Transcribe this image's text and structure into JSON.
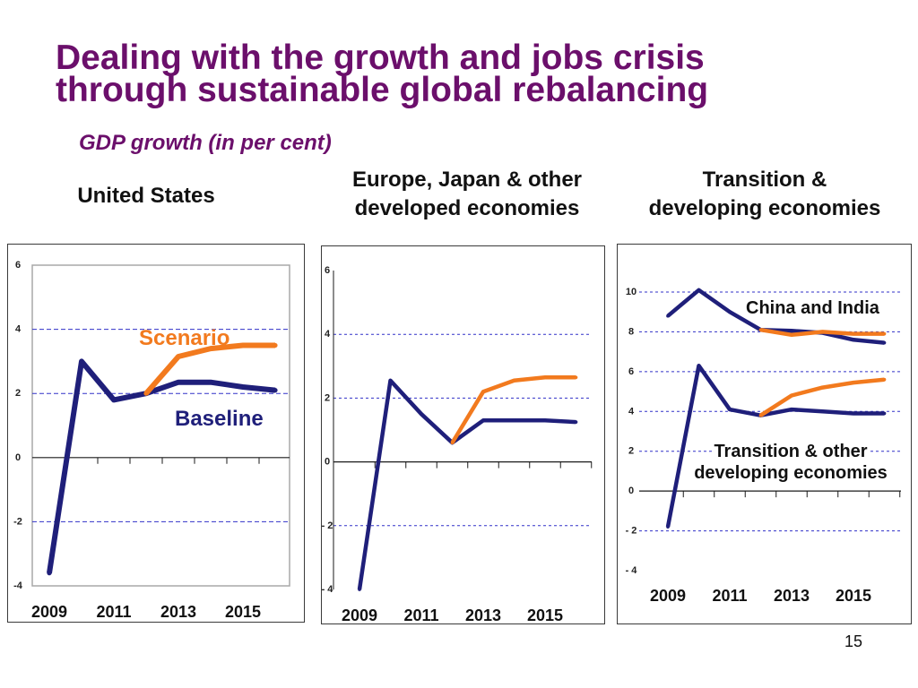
{
  "slide": {
    "title": {
      "line1": "Dealing with the growth and jobs crisis",
      "line2": "through sustainable global rebalancing"
    },
    "subtitle": "GDP growth (in per cent)",
    "page_number": "15"
  },
  "colors": {
    "title": "#6b0f6b",
    "baseline": "#1f1f7a",
    "scenario": "#f27a1e",
    "grid": "#3030c8",
    "axis": "#1a1a1a",
    "frame": "#a8a8a8",
    "text": "#111111"
  },
  "chart_data": [
    {
      "type": "line",
      "title_lines": [
        "United States"
      ],
      "x": [
        2009,
        2010,
        2011,
        2012,
        2013,
        2014,
        2015,
        2016
      ],
      "xticks": [
        2009,
        2011,
        2013,
        2015
      ],
      "ylim": [
        -4,
        6
      ],
      "yticks": [
        6,
        4,
        2,
        0,
        -2,
        -4
      ],
      "ytick_labels": [
        "6",
        "4",
        "2",
        "0",
        "-2",
        "-4"
      ],
      "grid_lines": [
        4,
        2,
        -2
      ],
      "series": {
        "baseline": [
          -3.6,
          3.0,
          1.8,
          2.0,
          2.35,
          2.35,
          2.2,
          2.1
        ],
        "scenario": [
          null,
          null,
          null,
          2.0,
          3.15,
          3.4,
          3.5,
          3.5
        ]
      },
      "annotations": {
        "scenario": "Scenario",
        "baseline": "Baseline"
      }
    },
    {
      "type": "line",
      "title_lines": [
        "Europe, Japan & other",
        "developed economies"
      ],
      "x": [
        2009,
        2010,
        2011,
        2012,
        2013,
        2014,
        2015,
        2016
      ],
      "xticks": [
        2009,
        2011,
        2013,
        2015
      ],
      "ylim": [
        -4,
        6
      ],
      "yticks": [
        6,
        4,
        2,
        0,
        -2,
        -4
      ],
      "ytick_labels": [
        "6",
        "4",
        "2",
        "0",
        "- 2",
        "- 4"
      ],
      "grid_lines": [
        4,
        2,
        -2
      ],
      "series": {
        "baseline": [
          -4.0,
          2.55,
          1.5,
          0.6,
          1.3,
          1.3,
          1.3,
          1.25
        ],
        "scenario": [
          null,
          null,
          null,
          0.6,
          2.2,
          2.55,
          2.65,
          2.65
        ]
      }
    },
    {
      "type": "line",
      "title_lines": [
        "Transition &",
        "developing economies"
      ],
      "x": [
        2009,
        2010,
        2011,
        2012,
        2013,
        2014,
        2015,
        2016
      ],
      "xticks": [
        2009,
        2011,
        2013,
        2015
      ],
      "ylim": [
        -4,
        10
      ],
      "yticks": [
        10,
        8,
        6,
        4,
        2,
        0,
        -2,
        -4
      ],
      "ytick_labels": [
        "10",
        "8",
        "6",
        "4",
        "2",
        "0",
        "- 2",
        "- 4"
      ],
      "grid_lines": [
        10,
        8,
        6,
        4,
        2,
        -2
      ],
      "groups": [
        {
          "label_lines": [
            "China and India"
          ],
          "series": {
            "baseline": [
              8.8,
              10.1,
              9.0,
              8.1,
              8.05,
              7.95,
              7.6,
              7.45
            ],
            "scenario": [
              null,
              null,
              null,
              8.1,
              7.85,
              8.0,
              7.9,
              7.9
            ]
          }
        },
        {
          "label_lines": [
            "Transition & other",
            "developing economies"
          ],
          "series": {
            "baseline": [
              -1.8,
              6.3,
              4.1,
              3.8,
              4.1,
              4.0,
              3.9,
              3.9
            ],
            "scenario": [
              null,
              null,
              null,
              3.8,
              4.8,
              5.2,
              5.45,
              5.6
            ]
          }
        }
      ]
    }
  ]
}
